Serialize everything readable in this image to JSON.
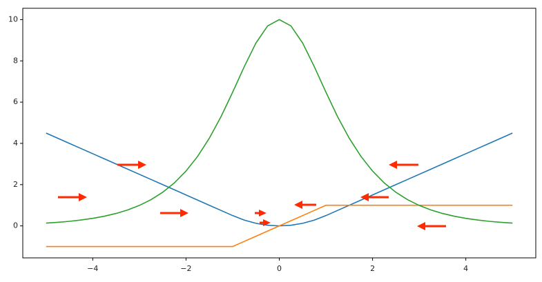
{
  "chart_data": {
    "type": "line",
    "x": [
      -5,
      -4.75,
      -4.5,
      -4.25,
      -4,
      -3.75,
      -3.5,
      -3.25,
      -3,
      -2.75,
      -2.5,
      -2.25,
      -2,
      -1.75,
      -1.5,
      -1.25,
      -1,
      -0.75,
      -0.5,
      -0.25,
      0,
      0.25,
      0.5,
      0.75,
      1,
      1.25,
      1.5,
      1.75,
      2,
      2.25,
      2.5,
      2.75,
      3,
      3.25,
      3.5,
      3.75,
      4,
      4.25,
      4.5,
      4.75,
      5
    ],
    "series": [
      {
        "color": "#1f77b4",
        "values": [
          4.5,
          4.25,
          4,
          3.75,
          3.5,
          3.25,
          3,
          2.75,
          2.5,
          2.25,
          2,
          1.75,
          1.5,
          1.25,
          1,
          0.75,
          0.5,
          0.28125,
          0.125,
          0.03125,
          0,
          0.03125,
          0.125,
          0.28125,
          0.5,
          0.75,
          1,
          1.25,
          1.5,
          1.75,
          2,
          2.25,
          2.5,
          2.75,
          3,
          3.25,
          3.5,
          3.75,
          4,
          4.25,
          4.5
        ]
      },
      {
        "color": "#ff7f0e",
        "values": [
          -1,
          -1,
          -1,
          -1,
          -1,
          -1,
          -1,
          -1,
          -1,
          -1,
          -1,
          -1,
          -1,
          -1,
          -1,
          -1,
          -1,
          -0.75,
          -0.5,
          -0.25,
          0,
          0.25,
          0.5,
          0.75,
          1,
          1,
          1,
          1,
          1,
          1,
          1,
          1,
          1,
          1,
          1,
          1,
          1,
          1,
          1,
          1,
          1
        ]
      },
      {
        "color": "#2ca02c",
        "values": [
          0.135,
          0.173,
          0.222,
          0.285,
          0.366,
          0.47,
          0.603,
          0.774,
          0.993,
          1.273,
          1.631,
          2.085,
          2.658,
          3.374,
          4.251,
          5.295,
          6.481,
          7.724,
          8.868,
          9.696,
          10,
          9.696,
          8.868,
          7.724,
          6.481,
          5.295,
          4.251,
          3.374,
          2.658,
          2.085,
          1.631,
          1.273,
          0.993,
          0.774,
          0.603,
          0.47,
          0.366,
          0.285,
          0.222,
          0.173,
          0.135
        ]
      }
    ],
    "xlim": [
      -5.5,
      5.5
    ],
    "xticks": [
      {
        "value": -4,
        "label": "−4"
      },
      {
        "value": -2,
        "label": "−2"
      },
      0,
      2,
      4
    ],
    "ylim": [
      -1.55,
      10.55
    ],
    "yticks": [
      0,
      2,
      4,
      6,
      8,
      10
    ]
  }
}
